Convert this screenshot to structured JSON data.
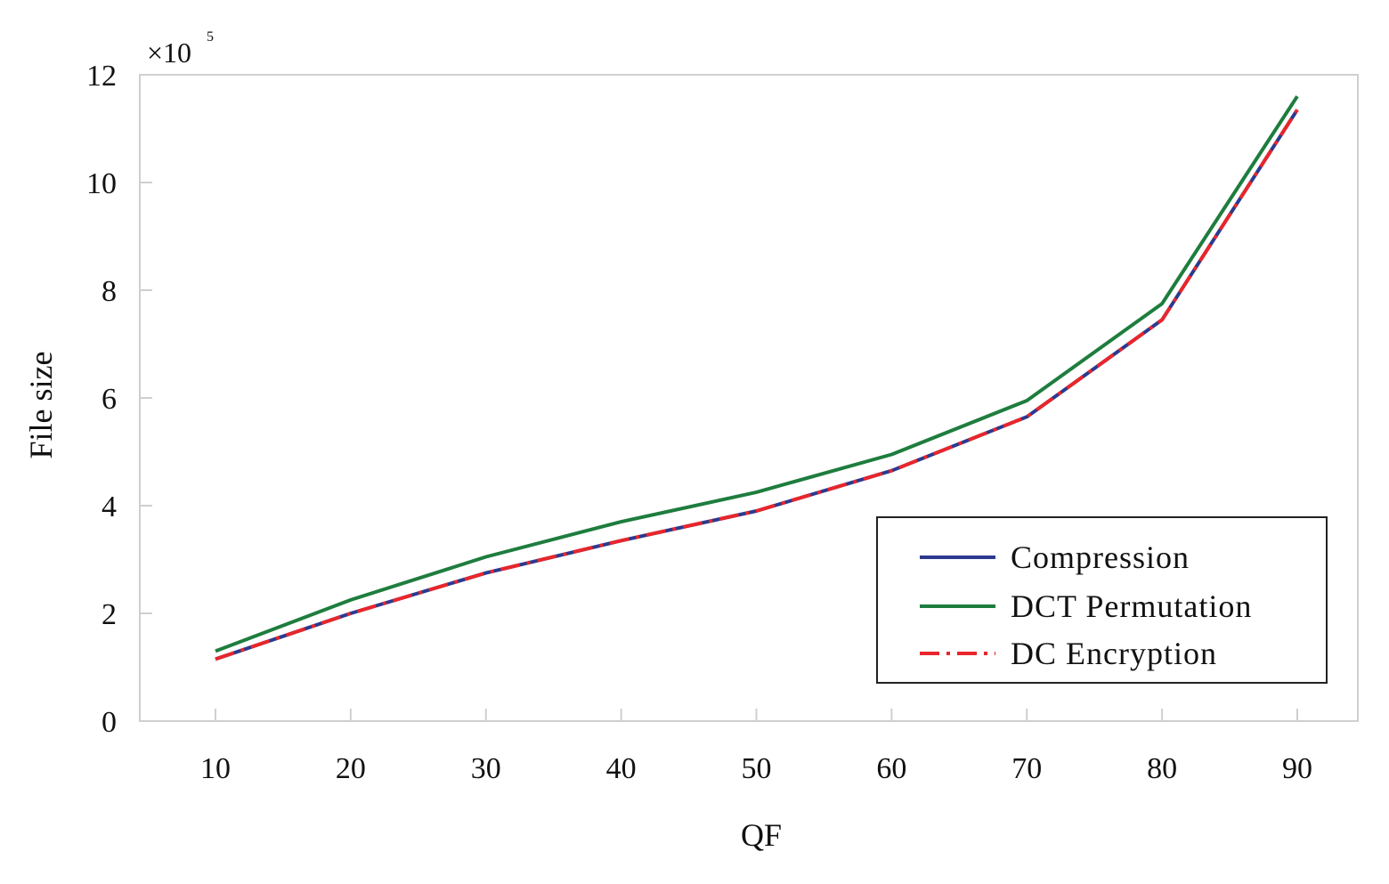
{
  "chart_data": {
    "type": "line",
    "title": "",
    "xlabel": "QF",
    "ylabel": "File size",
    "y_multiplier": {
      "base": "×10",
      "exponent": "5"
    },
    "x": [
      10,
      20,
      30,
      40,
      50,
      60,
      70,
      80,
      90
    ],
    "x_tick_labels": [
      "10",
      "20",
      "30",
      "40",
      "50",
      "60",
      "70",
      "80",
      "90"
    ],
    "y_tick_values": [
      0,
      2,
      4,
      6,
      8,
      10,
      12
    ],
    "y_tick_labels": [
      "0",
      "2",
      "4",
      "6",
      "8",
      "10",
      "12"
    ],
    "ylim": [
      0,
      12
    ],
    "grid": false,
    "legend_position": "bottom-right",
    "series": [
      {
        "name": "Compression",
        "color": "#2b3a8f",
        "style": "solid",
        "values": [
          1.15,
          2.0,
          2.75,
          3.35,
          3.9,
          4.65,
          5.65,
          7.45,
          11.35
        ]
      },
      {
        "name": "DCT Permutation",
        "color": "#1e7d3e",
        "style": "solid",
        "values": [
          1.3,
          2.25,
          3.05,
          3.7,
          4.25,
          4.95,
          5.95,
          7.75,
          11.6
        ]
      },
      {
        "name": "DC Encryption",
        "color": "#e8262b",
        "style": "dashdot",
        "values": [
          1.15,
          2.0,
          2.75,
          3.35,
          3.9,
          4.65,
          5.65,
          7.45,
          11.35
        ]
      }
    ]
  }
}
